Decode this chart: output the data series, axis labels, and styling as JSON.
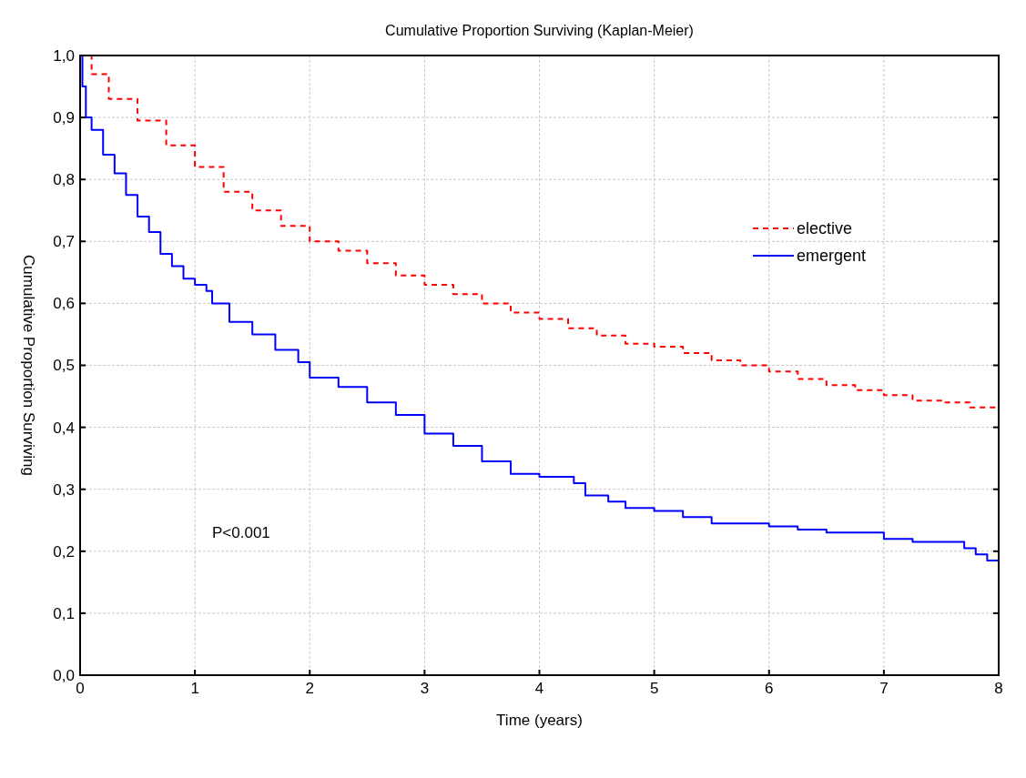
{
  "chart_data": {
    "type": "step",
    "title": "Cumulative Proportion Surviving (Kaplan-Meier)",
    "xlabel": "Time (years)",
    "ylabel": "Cumulative Proportion Surviving",
    "xlim": [
      0,
      8
    ],
    "xticks": [
      0,
      1,
      2,
      3,
      4,
      5,
      6,
      7,
      8
    ],
    "ylim": [
      0,
      1
    ],
    "yticks": [
      {
        "value": 0,
        "label": "0,0"
      },
      {
        "value": 0.1,
        "label": "0,1"
      },
      {
        "value": 0.2,
        "label": "0,2"
      },
      {
        "value": 0.3,
        "label": "0,3"
      },
      {
        "value": 0.4,
        "label": "0,4"
      },
      {
        "value": 0.5,
        "label": "0,5"
      },
      {
        "value": 0.6,
        "label": "0,6"
      },
      {
        "value": 0.7,
        "label": "0,7"
      },
      {
        "value": 0.8,
        "label": "0,8"
      },
      {
        "value": 0.9,
        "label": "0,9"
      },
      {
        "value": 1,
        "label": "1,0"
      }
    ],
    "grid": true,
    "legend": "top right",
    "annotations": [
      "P<0.001"
    ],
    "series": [
      {
        "name": "elective",
        "color": "#ff0000",
        "line_style": "dashed",
        "x": [
          0,
          0.1,
          0.25,
          0.5,
          0.75,
          1,
          1.25,
          1.5,
          1.75,
          2,
          2.25,
          2.5,
          2.75,
          3,
          3.25,
          3.5,
          3.75,
          4,
          4.25,
          4.5,
          4.75,
          5,
          5.25,
          5.5,
          5.75,
          6,
          6.25,
          6.5,
          6.75,
          7,
          7.25,
          7.5,
          7.75,
          8
        ],
        "values": [
          1,
          0.97,
          0.93,
          0.895,
          0.855,
          0.82,
          0.78,
          0.75,
          0.725,
          0.7,
          0.685,
          0.665,
          0.645,
          0.63,
          0.615,
          0.6,
          0.585,
          0.575,
          0.56,
          0.548,
          0.535,
          0.53,
          0.52,
          0.508,
          0.5,
          0.49,
          0.478,
          0.468,
          0.46,
          0.452,
          0.443,
          0.44,
          0.432,
          0.423
        ]
      },
      {
        "name": "emergent",
        "color": "#0000ff",
        "line_style": "solid",
        "x": [
          0,
          0.02,
          0.05,
          0.1,
          0.2,
          0.3,
          0.4,
          0.5,
          0.6,
          0.7,
          0.8,
          0.9,
          1,
          1.1,
          1.15,
          1.3,
          1.5,
          1.7,
          1.9,
          2,
          2.25,
          2.5,
          2.75,
          3,
          3.25,
          3.5,
          3.75,
          4,
          4.3,
          4.4,
          4.6,
          4.75,
          5,
          5.25,
          5.5,
          6,
          6.25,
          6.5,
          7,
          7.25,
          7.65,
          7.7,
          7.8,
          7.9,
          8
        ],
        "values": [
          1,
          0.95,
          0.9,
          0.88,
          0.84,
          0.81,
          0.775,
          0.74,
          0.715,
          0.68,
          0.66,
          0.64,
          0.63,
          0.62,
          0.6,
          0.57,
          0.55,
          0.525,
          0.505,
          0.48,
          0.465,
          0.44,
          0.42,
          0.39,
          0.37,
          0.345,
          0.325,
          0.32,
          0.31,
          0.29,
          0.28,
          0.27,
          0.265,
          0.255,
          0.245,
          0.24,
          0.235,
          0.23,
          0.22,
          0.215,
          0.215,
          0.205,
          0.195,
          0.185,
          0.185
        ]
      }
    ]
  }
}
